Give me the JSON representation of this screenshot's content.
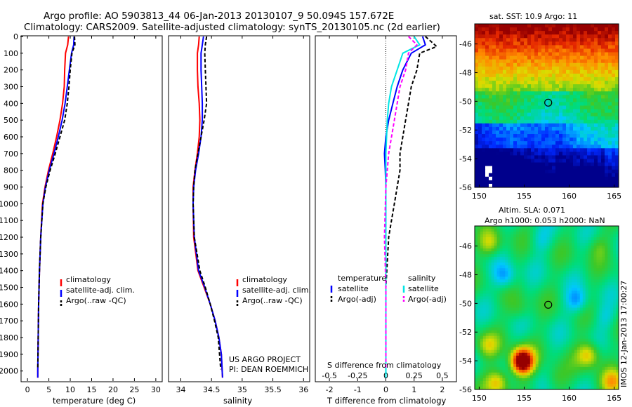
{
  "header": {
    "line1": "Argo profile: AO 5903813_44 06-Jan-2013 20130107_9 50.094S 157.672E",
    "line2": "Climatology: CARS2009. Satellite-adjusted climatology: synTS_20130105.nc (2d earlier)"
  },
  "colors": {
    "climatology": "#ff0000",
    "satellite": "#0000ff",
    "argo": "#000000",
    "sat_salinity": "#00e5e5",
    "argo_salinity": "#ff00ff",
    "marker": "#000000"
  },
  "credits": {
    "line1": "US ARGO PROJECT",
    "line2": "PI: DEAN ROEMMICH",
    "timestamp": "IMOS 12-Jan-2013 17:00:27"
  },
  "chart_data": [
    {
      "id": "temperature",
      "type": "line",
      "xlabel": "temperature (deg C)",
      "ylabel": "",
      "xlim": [
        -1.5,
        31.5
      ],
      "ylim": [
        2060,
        0
      ],
      "xticks": [
        0,
        5,
        10,
        15,
        20,
        25,
        30
      ],
      "yticks": [
        0,
        100,
        200,
        300,
        400,
        500,
        600,
        700,
        800,
        900,
        1000,
        1100,
        1200,
        1300,
        1400,
        1500,
        1600,
        1700,
        1800,
        1900,
        2000
      ],
      "legend": {
        "placement": "lower-middle",
        "entries": [
          "climatology",
          "satellite-adj. clim.",
          "Argo(..raw -QC)"
        ]
      },
      "series": [
        {
          "name": "climatology",
          "color": "#ff0000",
          "style": "solid",
          "x": [
            9.6,
            9.4,
            8.9,
            8.7,
            8.6,
            8.2,
            7.6,
            6.8,
            5.9,
            4.9,
            4.1,
            3.5,
            3.1,
            2.8,
            2.6,
            2.5,
            2.4,
            2.4
          ],
          "y": [
            0,
            50,
            100,
            200,
            300,
            400,
            500,
            600,
            700,
            800,
            900,
            1000,
            1200,
            1400,
            1600,
            1800,
            2000,
            2040
          ]
        },
        {
          "name": "satellite-adj. clim.",
          "color": "#0000ff",
          "style": "solid",
          "x": [
            10.9,
            10.8,
            10.3,
            9.8,
            9.3,
            8.8,
            8.1,
            7.2,
            6.2,
            5.1,
            4.2,
            3.6,
            3.1,
            2.8,
            2.6,
            2.5,
            2.4,
            2.4
          ],
          "y": [
            0,
            50,
            100,
            200,
            300,
            400,
            500,
            600,
            700,
            800,
            900,
            1000,
            1200,
            1400,
            1600,
            1800,
            2000,
            2040
          ]
        },
        {
          "name": "Argo(..raw -QC)",
          "color": "#000000",
          "style": "dashed",
          "x": [
            11.0,
            11.1,
            10.4,
            10.0,
            9.7,
            9.3,
            8.7,
            7.6,
            6.5,
            5.3,
            4.3,
            3.6,
            3.1,
            2.8,
            2.6,
            2.5,
            2.4
          ],
          "y": [
            0,
            50,
            100,
            200,
            300,
            400,
            500,
            600,
            700,
            800,
            900,
            1000,
            1200,
            1400,
            1600,
            1800,
            1990
          ]
        }
      ]
    },
    {
      "id": "salinity",
      "type": "line",
      "xlabel": "salinity",
      "ylabel": "",
      "xlim": [
        33.8,
        36.1
      ],
      "ylim": [
        2060,
        0
      ],
      "xticks": [
        34,
        34.5,
        35,
        35.5,
        36
      ],
      "legend": {
        "placement": "lower-middle",
        "entries": [
          "climatology",
          "satellite-adj. clim.",
          "Argo(..raw -QC)"
        ]
      },
      "series": [
        {
          "name": "climatology",
          "color": "#ff0000",
          "style": "solid",
          "x": [
            34.3,
            34.29,
            34.27,
            34.27,
            34.28,
            34.3,
            34.31,
            34.3,
            34.27,
            34.23,
            34.2,
            34.2,
            34.21,
            34.28,
            34.38,
            34.48,
            34.56,
            34.62,
            34.66,
            34.68
          ],
          "y": [
            0,
            50,
            100,
            200,
            300,
            400,
            500,
            600,
            700,
            800,
            900,
            1000,
            1200,
            1400,
            1500,
            1600,
            1700,
            1800,
            1900,
            2040
          ]
        },
        {
          "name": "satellite-adj. clim.",
          "color": "#0000ff",
          "style": "solid",
          "x": [
            34.37,
            34.35,
            34.33,
            34.33,
            34.34,
            34.35,
            34.35,
            34.33,
            34.29,
            34.24,
            34.21,
            34.2,
            34.22,
            34.29,
            34.39,
            34.48,
            34.56,
            34.62,
            34.66,
            34.68
          ],
          "y": [
            0,
            50,
            100,
            200,
            300,
            400,
            500,
            600,
            700,
            800,
            900,
            1000,
            1200,
            1400,
            1500,
            1600,
            1700,
            1800,
            1900,
            2040
          ]
        },
        {
          "name": "Argo(..raw -QC)",
          "color": "#000000",
          "style": "dashed",
          "x": [
            34.42,
            34.4,
            34.39,
            34.4,
            34.41,
            34.42,
            34.38,
            34.33,
            34.28,
            34.23,
            34.21,
            34.2,
            34.22,
            34.31,
            34.4,
            34.48,
            34.55,
            34.61,
            34.65
          ],
          "y": [
            0,
            50,
            100,
            200,
            300,
            400,
            500,
            600,
            700,
            800,
            900,
            1000,
            1200,
            1400,
            1500,
            1600,
            1700,
            1800,
            1990
          ]
        }
      ]
    },
    {
      "id": "difference",
      "type": "line",
      "xlabel": "T difference from climatology",
      "xlabel_top": "S difference from climatology",
      "xlim": [
        -2.5,
        2.5
      ],
      "ylim": [
        2060,
        0
      ],
      "xticks": [
        -2,
        -1,
        0,
        1,
        2
      ],
      "xticks_s_labels": [
        "-0.5",
        "-0.25",
        "0",
        "0.25",
        "0.5"
      ],
      "legend": {
        "placement": "lower-middle",
        "headers": [
          "temperature",
          "salinity"
        ],
        "entries": [
          "satellite",
          "Argo(-adj)",
          "satellite",
          "Argo(-adj)"
        ]
      },
      "series": [
        {
          "name": "satellite",
          "group": "temperature",
          "color": "#0000ff",
          "style": "solid",
          "x": [
            1.3,
            1.4,
            0.9,
            0.6,
            0.4,
            0.25,
            0.1,
            0.0,
            -0.05,
            -0.02,
            0.0,
            0.0,
            0.0,
            0.0,
            0.0
          ],
          "y": [
            0,
            50,
            100,
            200,
            300,
            400,
            500,
            600,
            700,
            800,
            900,
            1000,
            1200,
            1500,
            2040
          ]
        },
        {
          "name": "Argo(-adj)",
          "group": "temperature",
          "color": "#000000",
          "style": "dashed",
          "x": [
            1.4,
            1.8,
            1.2,
            1.1,
            0.9,
            0.8,
            0.7,
            0.6,
            0.5,
            0.5,
            0.4,
            0.3,
            0.2,
            0.1,
            0.0,
            0.0
          ],
          "y": [
            0,
            60,
            100,
            200,
            300,
            400,
            500,
            600,
            700,
            800,
            900,
            1000,
            1100,
            1200,
            1500,
            1990
          ]
        },
        {
          "name": "satellite",
          "group": "salinity",
          "color": "#00e5e5",
          "style": "solid",
          "x": [
            1.0,
            1.2,
            0.6,
            0.4,
            0.2,
            0.1,
            0.05,
            0.0,
            0.0,
            0.0
          ],
          "y": [
            0,
            50,
            100,
            200,
            300,
            400,
            500,
            700,
            1000,
            2040
          ]
        },
        {
          "name": "Argo(-adj)",
          "group": "salinity",
          "color": "#ff00ff",
          "style": "dashed",
          "x": [
            0.8,
            1.1,
            0.8,
            0.7,
            0.5,
            0.3,
            0.1,
            0.0,
            -0.05,
            0.0,
            0.0
          ],
          "y": [
            0,
            50,
            100,
            200,
            300,
            500,
            700,
            900,
            1200,
            1500,
            1990
          ]
        }
      ]
    },
    {
      "id": "sst_map",
      "type": "heatmap",
      "title": "sat. SST: 10.9 Argo: 11",
      "xlim": [
        149.5,
        165.5
      ],
      "ylim": [
        -56,
        -44.6
      ],
      "xticks": [
        150,
        155,
        160,
        165
      ],
      "yticks": [
        -46,
        -48,
        -50,
        -52,
        -54,
        -56
      ],
      "marker": {
        "lon": 157.672,
        "lat": -50.094
      }
    },
    {
      "id": "sla_map",
      "type": "heatmap",
      "title": "Altim. SLA: 0.071",
      "subtitle": "Argo h1000: 0.053 h2000: NaN",
      "xlim": [
        149.5,
        165.5
      ],
      "ylim": [
        -56,
        -44.6
      ],
      "xticks": [
        150,
        155,
        160,
        165
      ],
      "yticks": [
        -46,
        -48,
        -50,
        -52,
        -54,
        -56
      ],
      "marker": {
        "lon": 157.672,
        "lat": -50.094
      }
    }
  ]
}
